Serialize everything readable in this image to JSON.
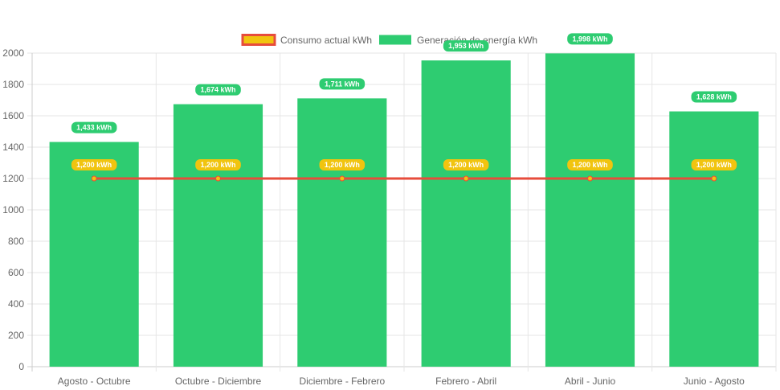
{
  "chart_data": {
    "type": "bar",
    "categories": [
      "Agosto - Octubre",
      "Octubre - Diciembre",
      "Diciembre - Febrero",
      "Febrero - Abril",
      "Abril - Junio",
      "Junio - Agosto"
    ],
    "series": [
      {
        "name": "Consumo actual kWh",
        "type": "line",
        "values": [
          1200,
          1200,
          1200,
          1200,
          1200,
          1200
        ],
        "labels": [
          "1,200 kWh",
          "1,200 kWh",
          "1,200 kWh",
          "1,200 kWh",
          "1,200 kWh",
          "1,200 kWh"
        ],
        "line_color": "#e74c3c",
        "fill_color": "#f1c40f"
      },
      {
        "name": "Generación de energía kWh",
        "type": "bar",
        "values": [
          1433,
          1674,
          1711,
          1953,
          1998,
          1628
        ],
        "labels": [
          "1,433 kWh",
          "1,674 kWh",
          "1,711 kWh",
          "1,953 kWh",
          "1,998 kWh",
          "1,628 kWh"
        ],
        "color": "#2ecc71"
      }
    ],
    "ylim": [
      0,
      2000
    ],
    "yticks": [
      0,
      200,
      400,
      600,
      800,
      1000,
      1200,
      1400,
      1600,
      1800,
      2000
    ],
    "grid": true,
    "legend_position": "top-center"
  }
}
